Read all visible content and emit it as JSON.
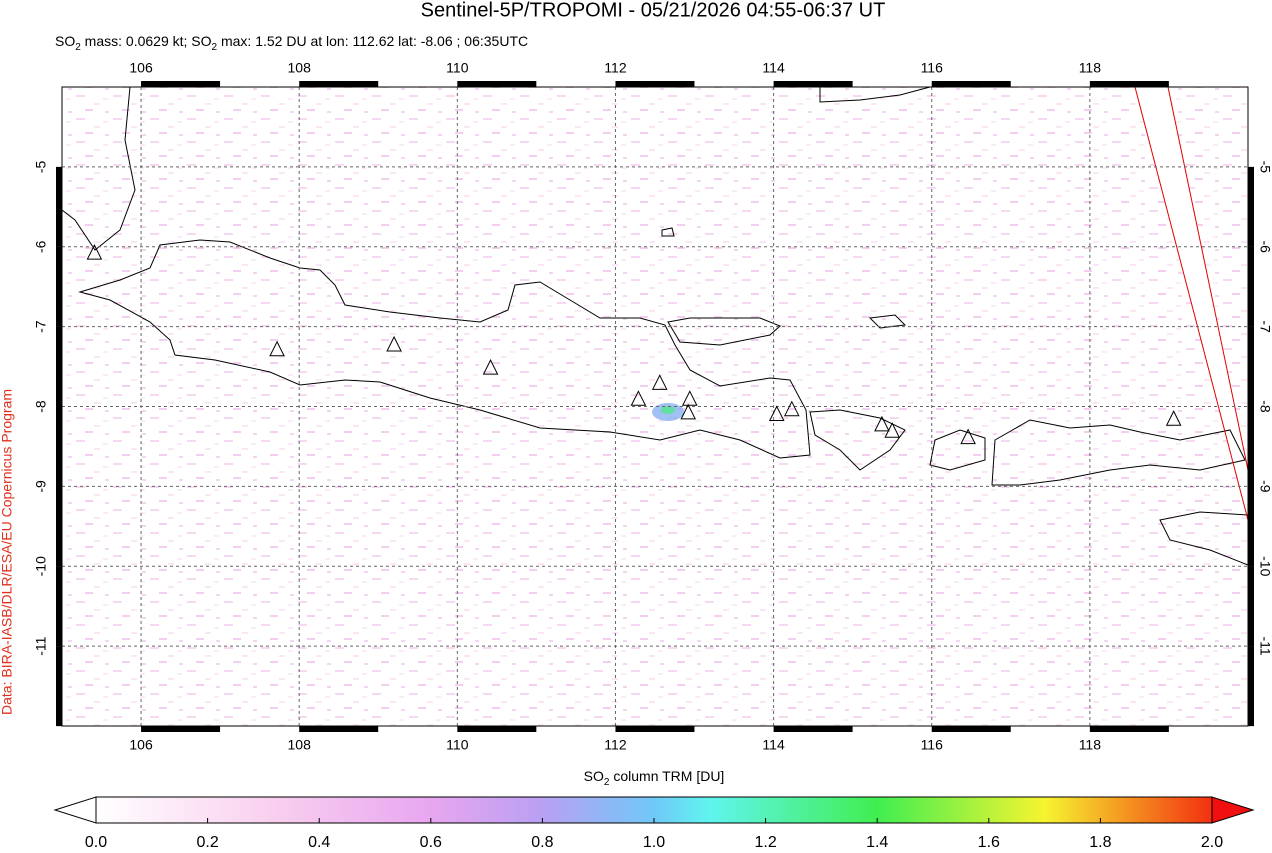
{
  "title": "Sentinel-5P/TROPOMI - 05/21/2026 04:55-06:37 UT",
  "subtitle": [
    "SO",
    "2",
    " mass: 0.0629 kt; SO",
    "2",
    " max: 1.52 DU at lon: 112.62 lat: -8.06 ; 06:35UTC"
  ],
  "credit": "Data: BIRA-IASB/DLR/ESA/EU Copernicus Program",
  "map": {
    "xlim": [
      105,
      120
    ],
    "ylim": [
      -12,
      -4
    ],
    "xticks": [
      106,
      108,
      110,
      112,
      114,
      116,
      118
    ],
    "yticks": [
      -11,
      -10,
      -9,
      -8,
      -7,
      -6,
      -5
    ],
    "grid": true,
    "volcanoes": {
      "lon": [
        105.41,
        107.72,
        109.2,
        110.42,
        112.29,
        112.56,
        112.94,
        112.92,
        114.04,
        114.23,
        115.37,
        115.5,
        116.46,
        119.06
      ],
      "lat": [
        -6.08,
        -7.29,
        -7.23,
        -7.52,
        -7.91,
        -7.71,
        -7.91,
        -8.08,
        -8.1,
        -8.04,
        -8.23,
        -8.31,
        -8.39,
        -8.16
      ]
    }
  },
  "colorbar": {
    "label": [
      "SO",
      "2",
      " column TRM [DU]"
    ],
    "lim": [
      0,
      2
    ],
    "ticks": [
      {
        "value": 0,
        "label": "0.0"
      },
      {
        "value": 0.2,
        "label": "0.2"
      },
      {
        "value": 0.4,
        "label": "0.4"
      },
      {
        "value": 0.6,
        "label": "0.6"
      },
      {
        "value": 0.8,
        "label": "0.8"
      },
      {
        "value": 1.0,
        "label": "1.0"
      },
      {
        "value": 1.2,
        "label": "1.2"
      },
      {
        "value": 1.4,
        "label": "1.4"
      },
      {
        "value": 1.6,
        "label": "1.6"
      },
      {
        "value": 1.8,
        "label": "1.8"
      },
      {
        "value": 2.0,
        "label": "2.0"
      }
    ]
  }
}
